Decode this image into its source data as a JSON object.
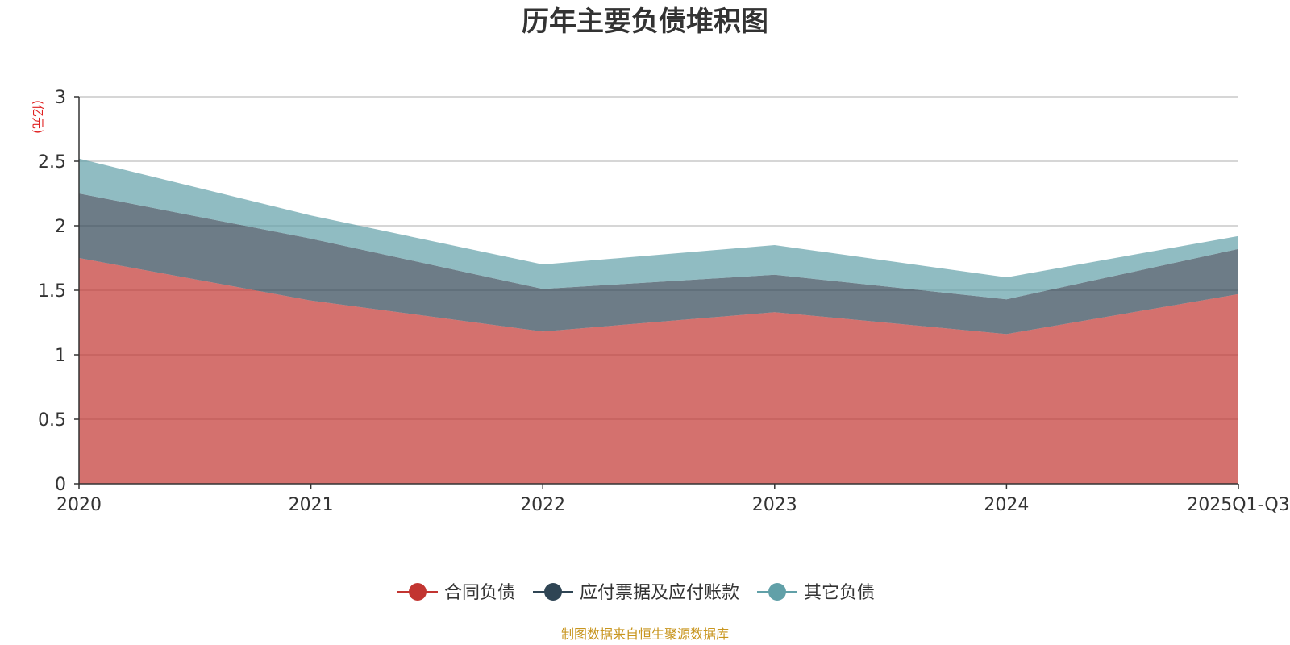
{
  "chart_data": {
    "type": "area",
    "stacked": true,
    "title": "历年主要负债堆积图",
    "unit_label": "(亿元)",
    "categories": [
      "2020",
      "2021",
      "2022",
      "2023",
      "2024",
      "2025Q1-Q3"
    ],
    "y_ticks": [
      "0",
      "0.5",
      "1",
      "1.5",
      "2",
      "2.5",
      "3"
    ],
    "ylim": [
      0,
      3
    ],
    "grid": true,
    "legend_position": "bottom",
    "series": [
      {
        "name": "合同负债",
        "color": "#c23531",
        "values": [
          1.75,
          1.42,
          1.18,
          1.33,
          1.16,
          1.47
        ]
      },
      {
        "name": "应付票据及应付账款",
        "color": "#2f4554",
        "values": [
          0.5,
          0.48,
          0.33,
          0.29,
          0.27,
          0.35
        ]
      },
      {
        "name": "其它负债",
        "color": "#61a0a8",
        "values": [
          0.27,
          0.18,
          0.19,
          0.23,
          0.17,
          0.1
        ]
      }
    ],
    "footer": "制图数据来自恒生聚源数据库"
  }
}
